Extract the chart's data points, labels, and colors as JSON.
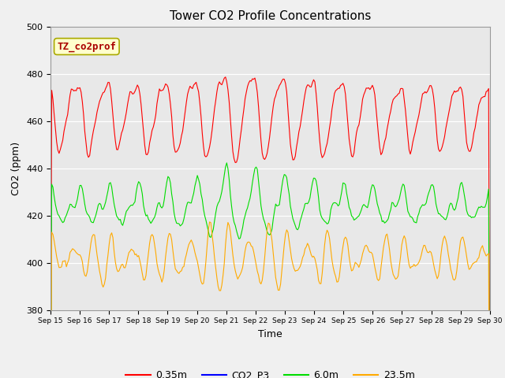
{
  "title": "Tower CO2 Profile Concentrations",
  "xlabel": "Time",
  "ylabel": "CO2 (ppm)",
  "ylim": [
    380,
    500
  ],
  "fig_bg": "#f0f0f0",
  "plot_bg": "#e8e8e8",
  "grid_color": "#ffffff",
  "series": {
    "0.35m": {
      "color": "#ff0000"
    },
    "CO2_P3": {
      "color": "#0000ff"
    },
    "6.0m": {
      "color": "#00dd00"
    },
    "23.5m": {
      "color": "#ffaa00"
    }
  },
  "annotation_text": "TZ_co2prof",
  "annotation_color": "#aa0000",
  "annotation_bg": "#ffffcc",
  "annotation_border": "#aaaa00",
  "tick_labels": [
    "Sep 15",
    "Sep 16",
    "Sep 17",
    "Sep 18",
    "Sep 19",
    "Sep 20",
    "Sep 21",
    "Sep 22",
    "Sep 23",
    "Sep 24",
    "Sep 25",
    "Sep 26",
    "Sep 27",
    "Sep 28",
    "Sep 29",
    "Sep 30"
  ],
  "yticks": [
    380,
    400,
    420,
    440,
    460,
    480,
    500
  ]
}
